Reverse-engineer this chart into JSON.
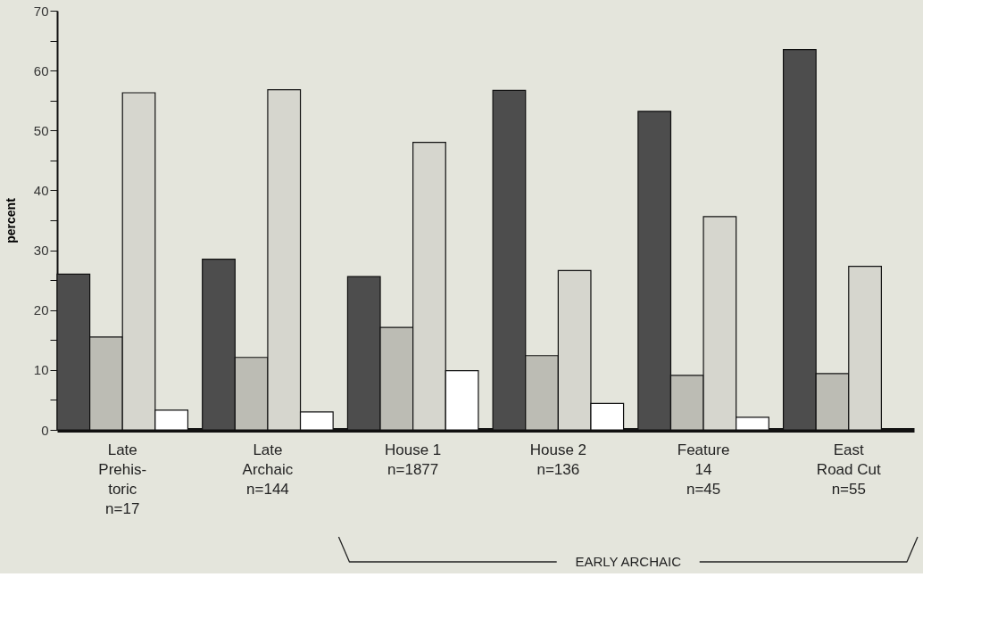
{
  "chart_data": {
    "type": "bar",
    "ylabel": "percent",
    "categories": [
      "Late\nPrehis-\ntoric\nn=17",
      "Late\nArchaic\nn=144",
      "House 1\nn=1877",
      "House 2\nn=136",
      "Feature\n14\nn=45",
      "East\nRoad Cut\nn=55"
    ],
    "series": [
      {
        "color": "#4d4d4d",
        "values": [
          26.0,
          28.5,
          25.6,
          56.7,
          53.2,
          63.5
        ]
      },
      {
        "color": "#bcbcb4",
        "values": [
          15.5,
          12.1,
          17.1,
          12.4,
          9.1,
          9.4
        ]
      },
      {
        "color": "#d6d6ce",
        "values": [
          56.3,
          56.8,
          48.0,
          26.6,
          35.6,
          27.3
        ]
      },
      {
        "color": "#ffffff",
        "values": [
          3.3,
          3.0,
          9.9,
          4.4,
          2.1,
          null
        ]
      }
    ],
    "ylim": [
      0,
      70
    ],
    "yticks": [
      0,
      {
        "value": 5,
        "label": null
      },
      10,
      {
        "value": 15,
        "label": null
      },
      20,
      {
        "value": 25,
        "label": null
      },
      30,
      {
        "value": 35,
        "label": null
      },
      40,
      {
        "value": 45,
        "label": null
      },
      50,
      {
        "value": 55,
        "label": null
      },
      60,
      {
        "value": 65,
        "label": null
      },
      70
    ],
    "grid": false,
    "legend": false,
    "annotations": [
      "EARLY ARCHAIC"
    ]
  }
}
